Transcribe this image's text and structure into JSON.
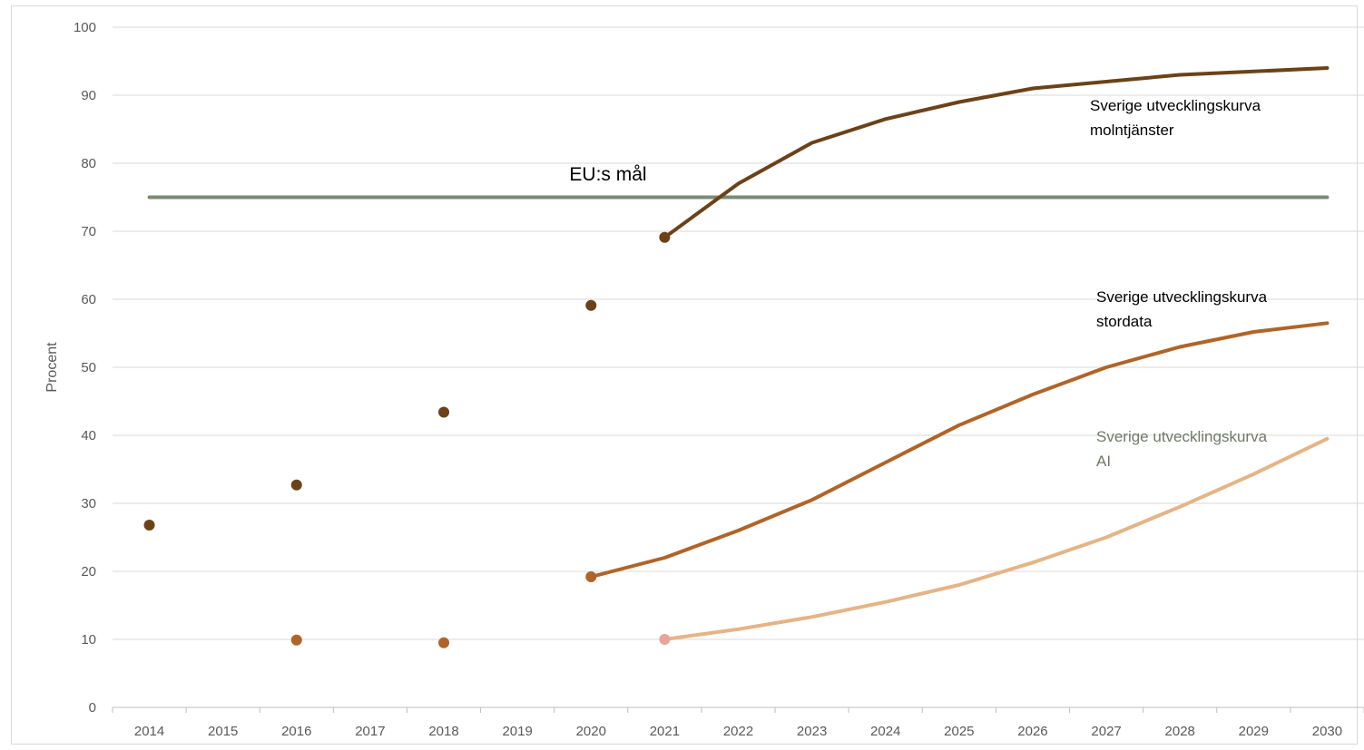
{
  "chart_data": {
    "type": "line",
    "ylabel": "Procent",
    "ylim": [
      0,
      100
    ],
    "yticks": [
      "0",
      "10",
      "20",
      "30",
      "40",
      "50",
      "60",
      "70",
      "80",
      "90",
      "100"
    ],
    "categories": [
      "2014",
      "2015",
      "2016",
      "2017",
      "2018",
      "2019",
      "2020",
      "2021",
      "2022",
      "2023",
      "2024",
      "2025",
      "2026",
      "2027",
      "2028",
      "2029",
      "2030"
    ],
    "grid": "horizontal",
    "series": [
      {
        "name": "EU:s mål",
        "color": "#7b8a76",
        "kind": "line",
        "points": [
          {
            "x": "2014",
            "y": 75
          },
          {
            "x": "2030",
            "y": 75
          }
        ]
      },
      {
        "name": "Sverige utvecklingskurva molntjänster",
        "color": "#6b4218",
        "kind": "line",
        "points": [
          {
            "x": "2021",
            "y": 69.1
          },
          {
            "x": "2022",
            "y": 77
          },
          {
            "x": "2023",
            "y": 83
          },
          {
            "x": "2024",
            "y": 86.5
          },
          {
            "x": "2025",
            "y": 89
          },
          {
            "x": "2026",
            "y": 91
          },
          {
            "x": "2027",
            "y": 92
          },
          {
            "x": "2028",
            "y": 93
          },
          {
            "x": "2029",
            "y": 93.5
          },
          {
            "x": "2030",
            "y": 94
          }
        ]
      },
      {
        "name": "Sverige utvecklingskurva stordata",
        "color": "#b06428",
        "kind": "line",
        "points": [
          {
            "x": "2020",
            "y": 19.2
          },
          {
            "x": "2021",
            "y": 22
          },
          {
            "x": "2022",
            "y": 26
          },
          {
            "x": "2023",
            "y": 30.5
          },
          {
            "x": "2024",
            "y": 36
          },
          {
            "x": "2025",
            "y": 41.5
          },
          {
            "x": "2026",
            "y": 46
          },
          {
            "x": "2027",
            "y": 50
          },
          {
            "x": "2028",
            "y": 53
          },
          {
            "x": "2029",
            "y": 55.2
          },
          {
            "x": "2030",
            "y": 56.5
          }
        ]
      },
      {
        "name": "Sverige utvecklingskurva AI",
        "color": "#e5b486",
        "kind": "line",
        "points": [
          {
            "x": "2021",
            "y": 10
          },
          {
            "x": "2022",
            "y": 11.5
          },
          {
            "x": "2023",
            "y": 13.3
          },
          {
            "x": "2024",
            "y": 15.5
          },
          {
            "x": "2025",
            "y": 18
          },
          {
            "x": "2026",
            "y": 21.3
          },
          {
            "x": "2027",
            "y": 25
          },
          {
            "x": "2028",
            "y": 29.5
          },
          {
            "x": "2029",
            "y": 34.3
          },
          {
            "x": "2030",
            "y": 39.5
          }
        ]
      },
      {
        "kind": "points",
        "color": "#6b4218",
        "points": [
          {
            "x": "2014",
            "y": 26.8
          },
          {
            "x": "2016",
            "y": 32.7
          },
          {
            "x": "2018",
            "y": 43.4
          },
          {
            "x": "2020",
            "y": 59.1
          },
          {
            "x": "2021",
            "y": 69.1
          }
        ]
      },
      {
        "kind": "points",
        "color": "#b06428",
        "points": [
          {
            "x": "2016",
            "y": 9.9
          },
          {
            "x": "2018",
            "y": 9.5
          },
          {
            "x": "2020",
            "y": 19.2
          }
        ]
      },
      {
        "kind": "points",
        "color": "#e8a49a",
        "points": [
          {
            "x": "2021",
            "y": 10
          }
        ]
      }
    ],
    "annotations": [
      {
        "text": "EU:s mål",
        "color": "#000000",
        "style": "eu"
      },
      {
        "lines": [
          "Sverige utvecklingskurva",
          "molntjänster"
        ],
        "color": "#000000"
      },
      {
        "lines": [
          "Sverige utvecklingskurva",
          "stordata"
        ],
        "color": "#000000"
      },
      {
        "lines": [
          "Sverige utvecklingskurva",
          "AI"
        ],
        "color": "#6f7a68"
      }
    ]
  }
}
